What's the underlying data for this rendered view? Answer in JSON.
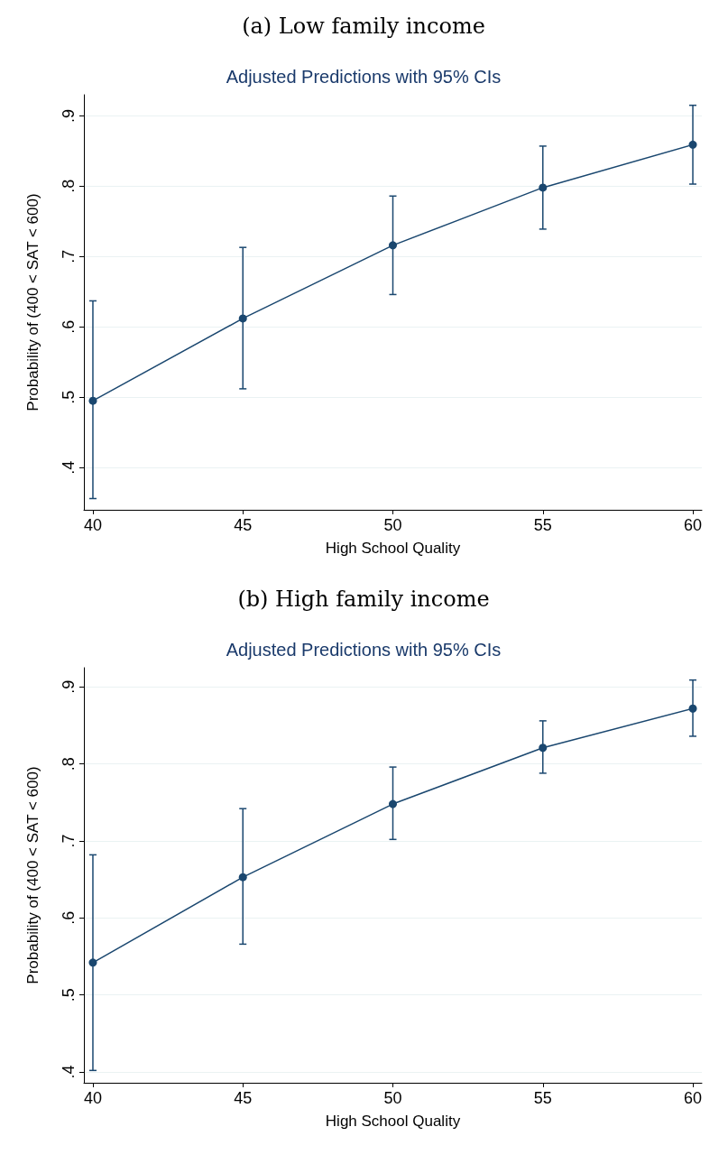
{
  "chart_data": [
    {
      "type": "line",
      "title": "(a) Low family income",
      "subtitle": "Adjusted Predictions with 95% CIs",
      "xlabel": "High School Quality",
      "ylabel": "Probability of (400 < SAT < 600)",
      "x": [
        40,
        45,
        50,
        55,
        60
      ],
      "series": [
        {
          "color": "#1a476f",
          "values": [
            0.495,
            0.612,
            0.716,
            0.798,
            0.859
          ],
          "errors": [
            [
              0.356,
              0.637
            ],
            [
              0.512,
              0.713
            ],
            [
              0.646,
              0.786
            ],
            [
              0.739,
              0.857
            ],
            [
              0.803,
              0.915
            ]
          ]
        }
      ],
      "xlim": [
        39.7,
        60.3
      ],
      "xticks": [
        40,
        45,
        50,
        55,
        60
      ],
      "ylim": [
        0.34,
        0.93
      ],
      "yticks": [
        {
          "value": 0.4,
          "label": ".4"
        },
        {
          "value": 0.5,
          "label": ".5"
        },
        {
          "value": 0.6,
          "label": ".6"
        },
        {
          "value": 0.7,
          "label": ".7"
        },
        {
          "value": 0.8,
          "label": ".8"
        },
        {
          "value": 0.9,
          "label": ".9"
        }
      ],
      "grid": "y",
      "marker": "circle",
      "line_style": "solid"
    },
    {
      "type": "line",
      "title": "(b) High family income",
      "subtitle": "Adjusted Predictions with 95% CIs",
      "xlabel": "High School Quality",
      "ylabel": "Probability of (400 < SAT < 600)",
      "x": [
        40,
        45,
        50,
        55,
        60
      ],
      "series": [
        {
          "color": "#1a476f",
          "values": [
            0.542,
            0.653,
            0.748,
            0.821,
            0.872
          ],
          "errors": [
            [
              0.402,
              0.682
            ],
            [
              0.566,
              0.742
            ],
            [
              0.702,
              0.796
            ],
            [
              0.788,
              0.856
            ],
            [
              0.836,
              0.909
            ]
          ]
        }
      ],
      "xlim": [
        39.7,
        60.3
      ],
      "xticks": [
        40,
        45,
        50,
        55,
        60
      ],
      "ylim": [
        0.386,
        0.925
      ],
      "yticks": [
        {
          "value": 0.4,
          "label": ".4"
        },
        {
          "value": 0.5,
          "label": ".5"
        },
        {
          "value": 0.6,
          "label": ".6"
        },
        {
          "value": 0.7,
          "label": ".7"
        },
        {
          "value": 0.8,
          "label": ".8"
        },
        {
          "value": 0.9,
          "label": ".9"
        }
      ],
      "grid": "y",
      "marker": "circle",
      "line_style": "solid"
    }
  ]
}
